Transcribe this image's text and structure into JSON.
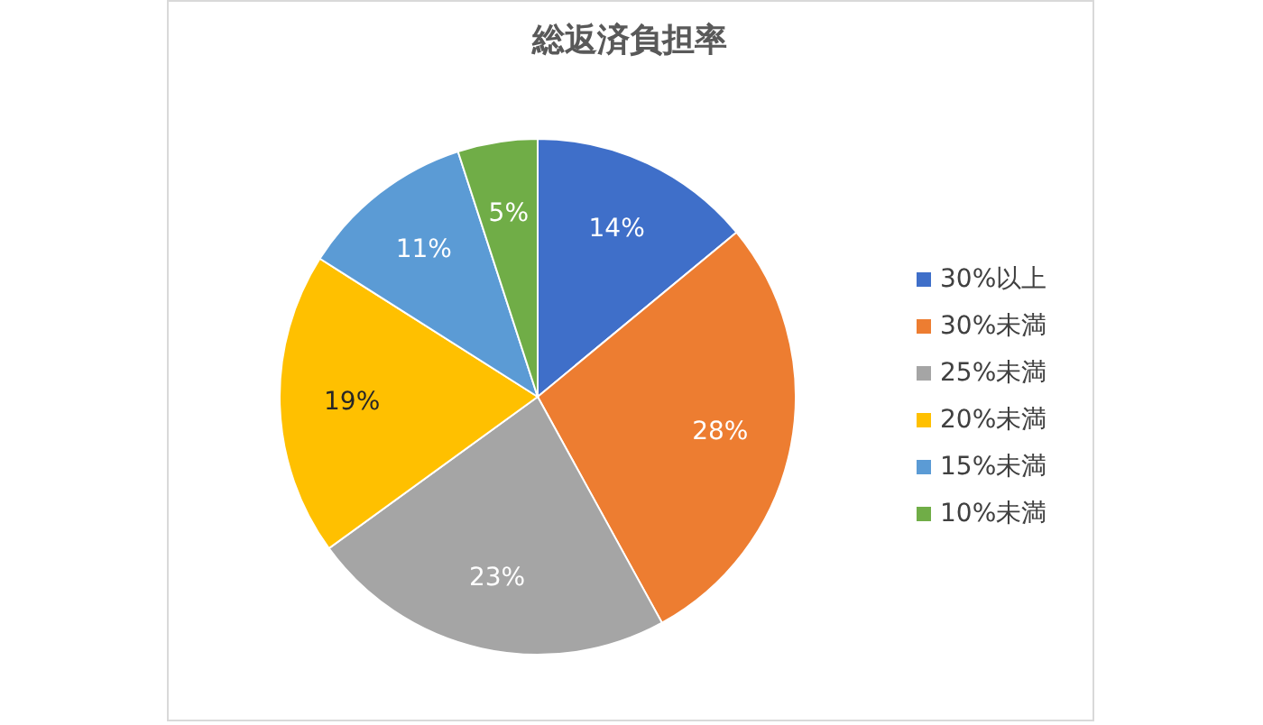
{
  "chart_data": {
    "type": "pie",
    "title": "総返済負担率",
    "categories": [
      "30%以上",
      "30%未満",
      "25%未満",
      "20%未満",
      "15%未満",
      "10%未満"
    ],
    "values": [
      14,
      28,
      23,
      19,
      11,
      5
    ],
    "colors": [
      "#3f6fc9",
      "#ed7d31",
      "#a5a5a5",
      "#ffc000",
      "#5b9bd5",
      "#70ad47"
    ],
    "value_labels": [
      "14%",
      "28%",
      "23%",
      "19%",
      "11%",
      "5%"
    ],
    "legend": "right"
  }
}
